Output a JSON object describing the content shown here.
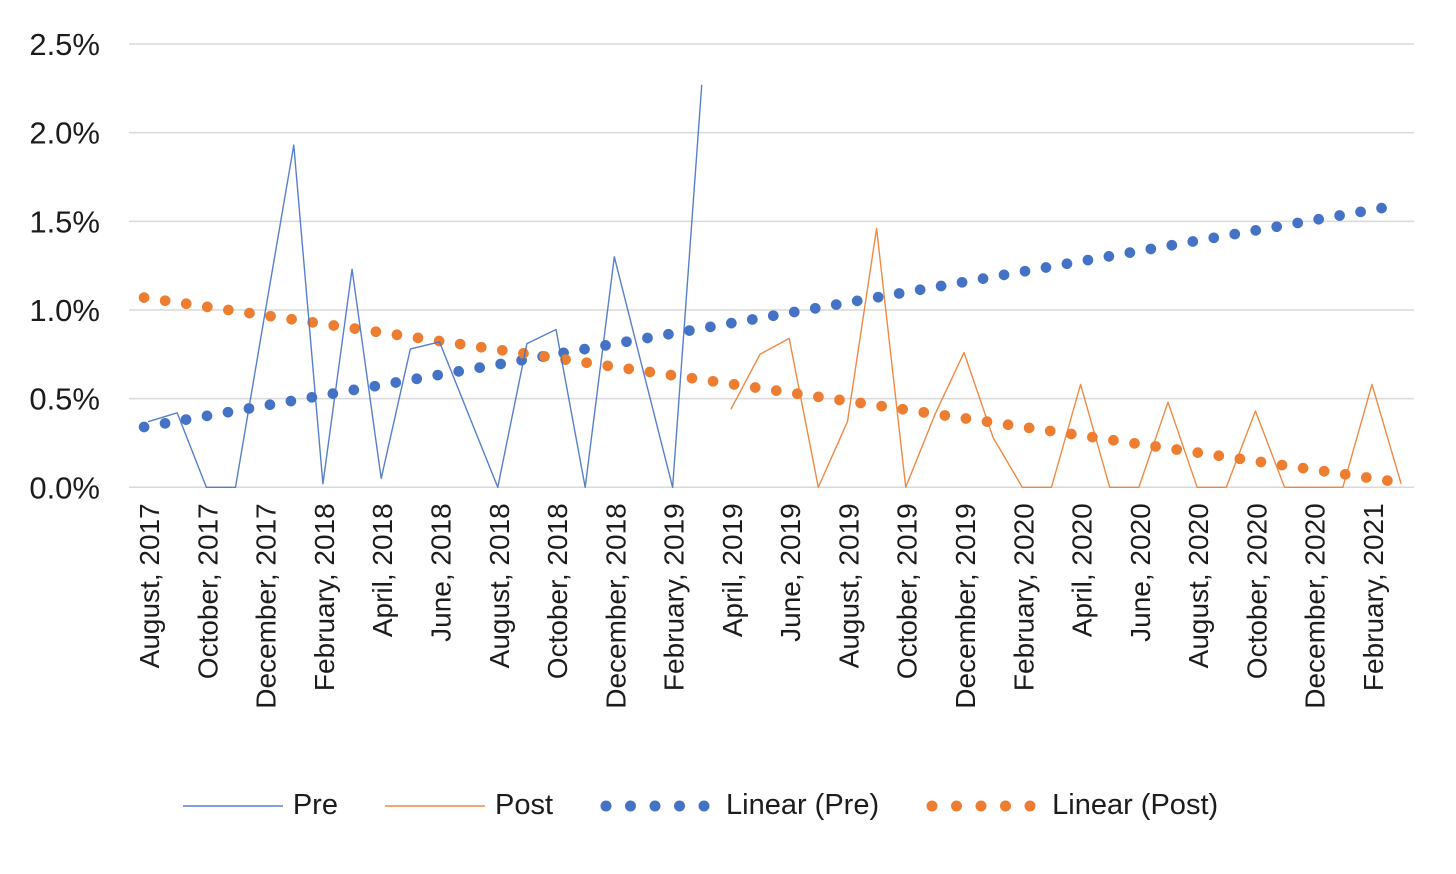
{
  "chart_data": {
    "type": "line",
    "title": "",
    "xlabel": "",
    "ylabel": "",
    "ylim": [
      0,
      2.5
    ],
    "grid": true,
    "legend_position": "bottom",
    "y_ticks": [
      "0.0%",
      "0.5%",
      "1.0%",
      "1.5%",
      "2.0%",
      "2.5%"
    ],
    "y_tick_values": [
      0,
      0.5,
      1.0,
      1.5,
      2.0,
      2.5
    ],
    "x_ticks_shown_every": 2,
    "categories": [
      "August, 2017",
      "September, 2017",
      "October, 2017",
      "November, 2017",
      "December, 2017",
      "January, 2018",
      "February, 2018",
      "March, 2018",
      "April, 2018",
      "May, 2018",
      "June, 2018",
      "July, 2018",
      "August, 2018",
      "September, 2018",
      "October, 2018",
      "November, 2018",
      "December, 2018",
      "January, 2019",
      "February, 2019",
      "March, 2019",
      "April, 2019",
      "May, 2019",
      "June, 2019",
      "July, 2019",
      "August, 2019",
      "September, 2019",
      "October, 2019",
      "November, 2019",
      "December, 2019",
      "January, 2020",
      "February, 2020",
      "March, 2020",
      "April, 2020",
      "May, 2020",
      "June, 2020",
      "July, 2020",
      "August, 2020",
      "September, 2020",
      "October, 2020",
      "November, 2020",
      "December, 2020",
      "January, 2021",
      "February, 2021",
      "March, 2021"
    ],
    "series": [
      {
        "name": "Pre",
        "color": "#4472C4",
        "style": "solid-thin",
        "values": [
          0.37,
          0.42,
          0.0,
          0.0,
          0.97,
          1.93,
          0.02,
          1.23,
          0.05,
          0.78,
          0.82,
          0.41,
          0.0,
          0.81,
          0.89,
          0.0,
          1.3,
          0.65,
          0.0,
          2.27,
          null,
          null,
          null,
          null,
          null,
          null,
          null,
          null,
          null,
          null,
          null,
          null,
          null,
          null,
          null,
          null,
          null,
          null,
          null,
          null,
          null,
          null,
          null,
          null
        ]
      },
      {
        "name": "Post",
        "color": "#ED7D31",
        "style": "solid-thin",
        "values": [
          null,
          null,
          null,
          null,
          null,
          null,
          null,
          null,
          null,
          null,
          null,
          null,
          null,
          null,
          null,
          null,
          null,
          null,
          null,
          null,
          0.44,
          0.75,
          0.84,
          0.0,
          0.37,
          1.46,
          0.0,
          0.41,
          0.76,
          0.28,
          0.0,
          0.0,
          0.58,
          0.0,
          0.0,
          0.48,
          0.0,
          0.0,
          0.43,
          0.0,
          0.0,
          0.0,
          0.58,
          0.02
        ]
      }
    ],
    "trendlines": [
      {
        "name": "Linear (Pre)",
        "color": "#4472C4",
        "style": "dotted",
        "start_value": 0.34,
        "end_value": 1.59
      },
      {
        "name": "Linear (Post)",
        "color": "#ED7D31",
        "style": "dotted",
        "start_value": 1.07,
        "end_value": 0.03
      }
    ]
  },
  "legend": {
    "items": [
      {
        "label": "Pre",
        "swatch": "line",
        "color": "#4472C4"
      },
      {
        "label": "Post",
        "swatch": "line",
        "color": "#ED7D31"
      },
      {
        "label": "Linear (Pre)",
        "swatch": "dots",
        "color": "#4472C4"
      },
      {
        "label": "Linear (Post)",
        "swatch": "dots",
        "color": "#ED7D31"
      }
    ]
  },
  "colors": {
    "background": "#ffffff",
    "gridline": "#D9D9D9",
    "axis_text": "#1c1c1c",
    "pre_blue": "#4472C4",
    "post_orange": "#ED7D31"
  }
}
